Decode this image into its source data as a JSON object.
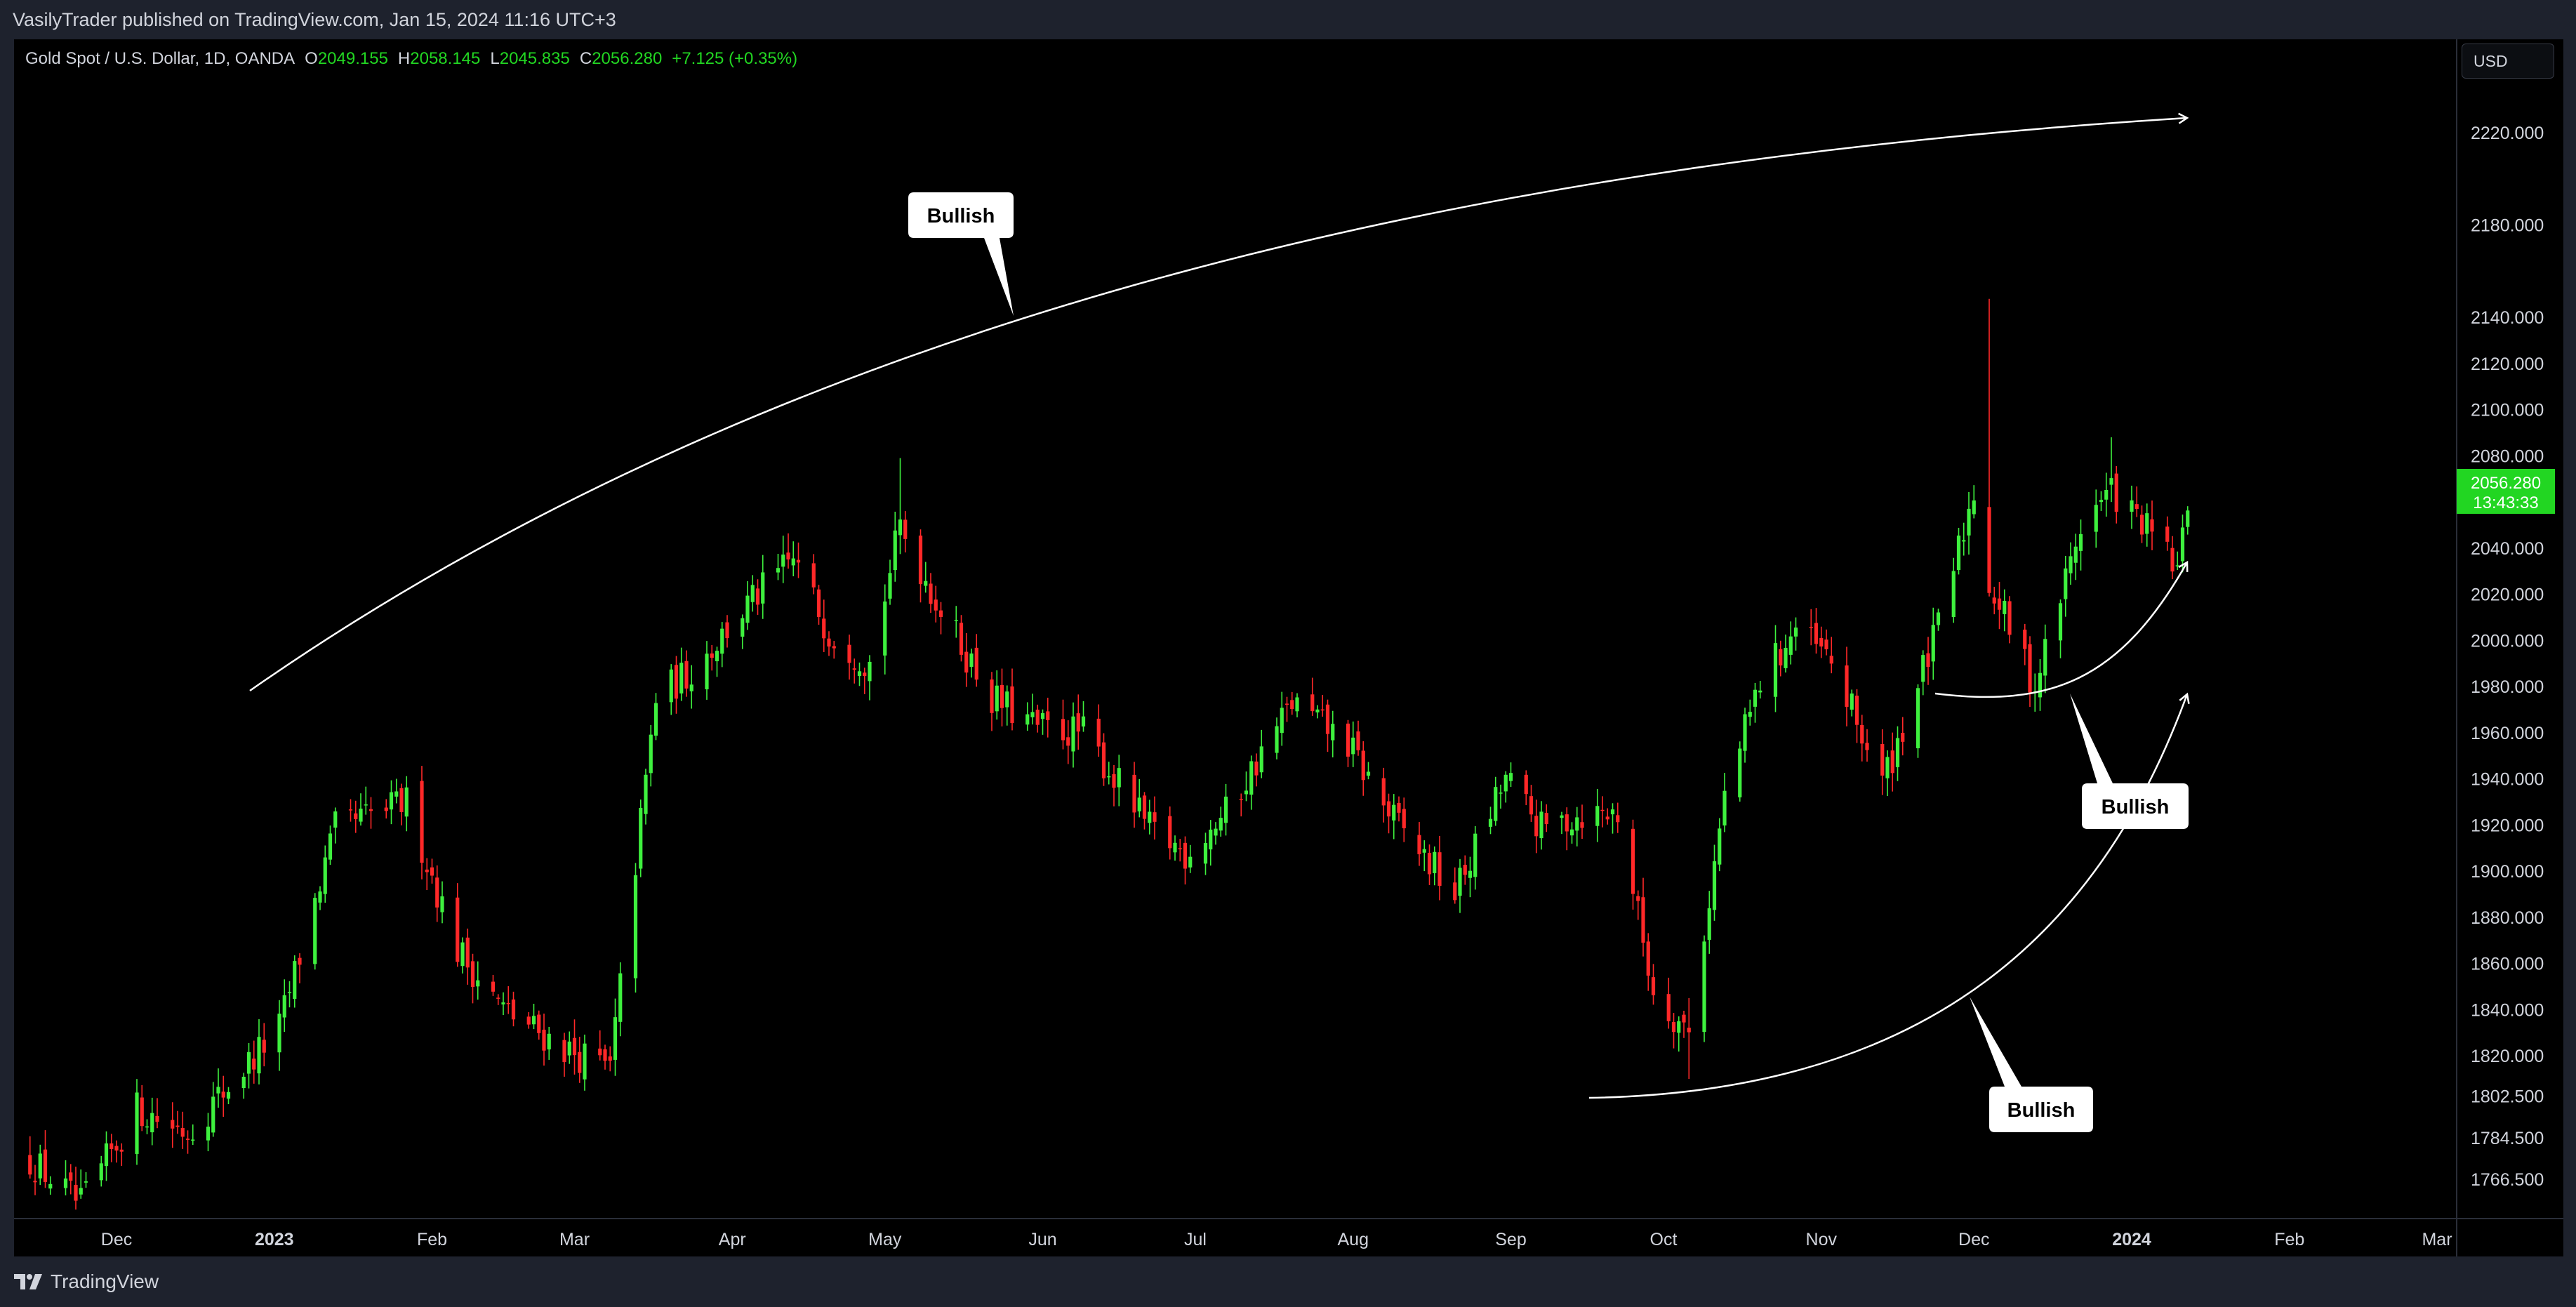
{
  "header": {
    "publisher_line": "VasilyTrader published on TradingView.com, Jan 15, 2024 11:16 UTC+3"
  },
  "legend": {
    "symbol": "Gold Spot / U.S. Dollar, 1D, OANDA",
    "open_label": "O",
    "open": "2049.155",
    "high_label": "H",
    "high": "2058.145",
    "low_label": "L",
    "low": "2045.835",
    "close_label": "C",
    "close": "2056.280",
    "change": "+7.125 (+0.35%)"
  },
  "currency_button": {
    "label": "USD"
  },
  "price_tag": {
    "price": "2056.280",
    "countdown": "13:43:33"
  },
  "colors": {
    "up": "#3ef03e",
    "down": "#ff2828",
    "background": "#000000",
    "accent": "#22d622"
  },
  "annotations": [
    {
      "label": "Bullish"
    },
    {
      "label": "Bullish"
    },
    {
      "label": "Bullish"
    }
  ],
  "footer": {
    "brand": "TradingView",
    "logo_icon": "tradingview-logo-icon"
  },
  "chart_data": {
    "type": "candlestick",
    "title": "Gold Spot / U.S. Dollar, 1D, OANDA",
    "y_ticks": [
      "2220.000",
      "2180.000",
      "2140.000",
      "2120.000",
      "2100.000",
      "2080.000",
      "2060.000",
      "2040.000",
      "2020.000",
      "2000.000",
      "1980.000",
      "1960.000",
      "1940.000",
      "1920.000",
      "1900.000",
      "1880.000",
      "1860.000",
      "1840.000",
      "1820.000",
      "1802.500",
      "1784.500",
      "1766.500"
    ],
    "ylim": [
      1745,
      2235
    ],
    "x_ticks": [
      {
        "label": "Dec",
        "bold": false
      },
      {
        "label": "2023",
        "bold": true
      },
      {
        "label": "Feb",
        "bold": false
      },
      {
        "label": "Mar",
        "bold": false
      },
      {
        "label": "Apr",
        "bold": false
      },
      {
        "label": "May",
        "bold": false
      },
      {
        "label": "Jun",
        "bold": false
      },
      {
        "label": "Jul",
        "bold": false
      },
      {
        "label": "Aug",
        "bold": false
      },
      {
        "label": "Sep",
        "bold": false
      },
      {
        "label": "Oct",
        "bold": false
      },
      {
        "label": "Nov",
        "bold": false
      },
      {
        "label": "Dec",
        "bold": false
      },
      {
        "label": "2024",
        "bold": true
      },
      {
        "label": "Feb",
        "bold": false
      },
      {
        "label": "Mar",
        "bold": false
      }
    ],
    "anchors": [
      [
        "2022-11-14",
        1775
      ],
      [
        "2022-11-24",
        1755
      ],
      [
        "2022-12-05",
        1797
      ],
      [
        "2022-12-15",
        1787
      ],
      [
        "2023-01-02",
        1832
      ],
      [
        "2023-01-13",
        1918
      ],
      [
        "2023-01-27",
        1930
      ],
      [
        "2023-02-06",
        1866
      ],
      [
        "2023-02-15",
        1840
      ],
      [
        "2023-02-28",
        1822
      ],
      [
        "2023-03-08",
        1814
      ],
      [
        "2023-03-17",
        1975
      ],
      [
        "2023-03-24",
        1987
      ],
      [
        "2023-04-04",
        2015
      ],
      [
        "2023-04-13",
        2035
      ],
      [
        "2023-04-20",
        2004
      ],
      [
        "2023-04-28",
        1990
      ],
      [
        "2023-05-04",
        2050
      ],
      [
        "2023-05-12",
        2013
      ],
      [
        "2023-05-22",
        1975
      ],
      [
        "2023-05-31",
        1962
      ],
      [
        "2023-06-09",
        1960
      ],
      [
        "2023-06-22",
        1918
      ],
      [
        "2023-06-29",
        1908
      ],
      [
        "2023-07-07",
        1925
      ],
      [
        "2023-07-20",
        1973
      ],
      [
        "2023-07-31",
        1955
      ],
      [
        "2023-08-08",
        1925
      ],
      [
        "2023-08-21",
        1890
      ],
      [
        "2023-08-31",
        1940
      ],
      [
        "2023-09-07",
        1918
      ],
      [
        "2023-09-15",
        1925
      ],
      [
        "2023-09-22",
        1925
      ],
      [
        "2023-09-29",
        1848
      ],
      [
        "2023-10-06",
        1830
      ],
      [
        "2023-10-13",
        1932
      ],
      [
        "2023-10-20",
        1982
      ],
      [
        "2023-10-27",
        2005
      ],
      [
        "2023-11-03",
        1990
      ],
      [
        "2023-11-13",
        1938
      ],
      [
        "2023-11-24",
        2005
      ],
      [
        "2023-12-01",
        2065
      ],
      [
        "2023-12-04",
        2025
      ],
      [
        "2023-12-13",
        1980
      ],
      [
        "2023-12-22",
        2050
      ],
      [
        "2023-12-28",
        2065
      ],
      [
        "2024-01-05",
        2045
      ],
      [
        "2024-01-10",
        2030
      ],
      [
        "2024-01-12",
        2056.28
      ]
    ],
    "notable_wicks": [
      {
        "date": "2023-12-04",
        "high": 2148
      },
      {
        "date": "2023-12-28",
        "high": 2088
      },
      {
        "date": "2023-05-04",
        "high": 2079
      },
      {
        "date": "2023-10-06",
        "high": 1845,
        "low": 1810
      }
    ]
  }
}
